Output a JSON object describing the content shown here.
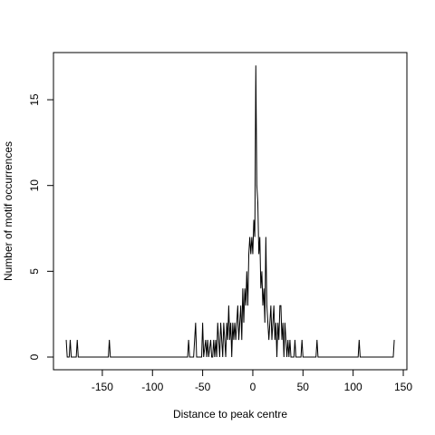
{
  "chart_data": {
    "type": "line",
    "xlabel": "Distance to peak centre",
    "ylabel": "Number of motif occurrences",
    "color": "#000000",
    "xlim": [
      -198.7,
      153.6
    ],
    "ylim": [
      -0.74,
      17.75
    ],
    "xticks": [
      -150,
      -100,
      -50,
      0,
      50,
      100,
      150
    ],
    "yticks": [
      0,
      5,
      10,
      15
    ],
    "x": [
      -186,
      -185,
      -183,
      -182,
      -181,
      -176,
      -175,
      -174,
      -144,
      -143,
      -142,
      -65,
      -64,
      -63,
      -59,
      -58,
      -57,
      -56,
      -51,
      -50,
      -49,
      -47,
      -46,
      -45,
      -44,
      -42,
      -41,
      -40,
      -39,
      -38,
      -37,
      -36,
      -35,
      -34,
      -33,
      -32,
      -31,
      -30,
      -29,
      -28,
      -27,
      -26,
      -25,
      -24,
      -23,
      -22,
      -21,
      -20,
      -19,
      -18,
      -17,
      -16,
      -15,
      -14,
      -13,
      -12,
      -11,
      -10,
      -9,
      -8,
      -7,
      -6,
      -5,
      -4,
      -3,
      -2,
      -1,
      0,
      1,
      2,
      3,
      4,
      5,
      6,
      7,
      8,
      9,
      10,
      11,
      12,
      13,
      14,
      15,
      16,
      17,
      18,
      19,
      20,
      21,
      22,
      23,
      24,
      25,
      26,
      27,
      28,
      29,
      30,
      31,
      32,
      33,
      34,
      35,
      36,
      37,
      38,
      39,
      40,
      41,
      42,
      43,
      48,
      49,
      50,
      63,
      64,
      65,
      105,
      106,
      107,
      140,
      141
    ],
    "values": [
      1,
      0,
      0,
      1,
      0,
      0,
      1,
      0,
      0,
      1,
      0,
      0,
      1,
      0,
      0,
      1,
      2,
      0,
      0,
      2,
      0,
      1,
      0,
      1,
      0,
      1,
      0,
      0,
      1,
      0,
      1,
      0,
      2,
      1,
      0,
      2,
      1,
      0,
      2,
      1,
      0,
      2,
      1,
      3,
      1,
      2,
      0,
      2,
      1,
      2,
      1,
      2,
      3,
      1,
      2,
      3,
      1,
      4,
      2,
      4,
      3,
      5,
      3,
      6,
      7,
      6,
      7,
      6,
      8,
      7,
      17,
      10,
      9,
      6,
      7,
      4,
      5,
      3,
      4,
      2,
      7,
      3,
      2,
      1,
      2,
      3,
      1,
      2,
      3,
      1,
      2,
      0,
      2,
      1,
      3,
      3,
      1,
      2,
      0,
      2,
      1,
      0,
      1,
      0,
      1,
      0,
      0,
      0,
      0,
      1,
      0,
      0,
      1,
      0,
      0,
      1,
      0,
      0,
      1,
      0,
      0,
      1
    ]
  }
}
